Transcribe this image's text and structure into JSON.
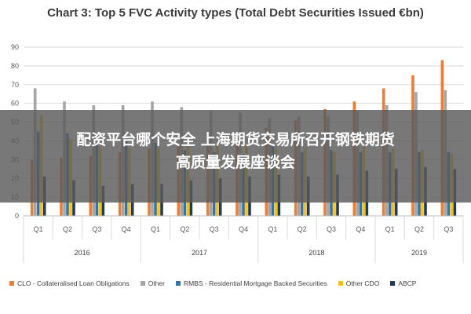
{
  "chart_data": {
    "type": "bar",
    "title": "Chart 3: Top 5 FVC Activity types (Total Debt Securities Issued €bn)",
    "xlabel": "",
    "ylabel": "",
    "ylim": [
      0,
      90
    ],
    "yticks": [
      0,
      10,
      20,
      30,
      40,
      50,
      60,
      70,
      80,
      90
    ],
    "grid": true,
    "legend_position": "bottom",
    "categories": [
      "Q1",
      "Q2",
      "Q3",
      "Q4",
      "Q1",
      "Q2",
      "Q3",
      "Q4",
      "Q1",
      "Q2",
      "Q3",
      "Q4",
      "Q1",
      "Q2",
      "Q3"
    ],
    "groups": [
      {
        "label": "2016",
        "count": 4
      },
      {
        "label": "2017",
        "count": 4
      },
      {
        "label": "2018",
        "count": 4
      },
      {
        "label": "2019",
        "count": 3
      }
    ],
    "series": [
      {
        "name": "CLO - Collateralised Loan Obligations",
        "color": "#ed7d31",
        "values": [
          30,
          31,
          32,
          34,
          36,
          38,
          40,
          44,
          47,
          51,
          57,
          61,
          68,
          75,
          83
        ]
      },
      {
        "name": "Other",
        "color": "#a5a5a5",
        "values": [
          68,
          61,
          59,
          59,
          61,
          58,
          56,
          55,
          52,
          53,
          53,
          56,
          59,
          66,
          67
        ]
      },
      {
        "name": "RMBS - Residential Mortgage Backed Securities",
        "color": "#2e75b6",
        "values": [
          45,
          44,
          38,
          41,
          39,
          35,
          34,
          33,
          38,
          34,
          35,
          34,
          34,
          34,
          34
        ]
      },
      {
        "name": "Other CDO",
        "color": "#ffc000",
        "values": [
          54,
          41,
          37,
          36,
          36,
          37,
          38,
          38,
          36,
          36,
          34,
          37,
          36,
          35,
          33
        ]
      },
      {
        "name": "ABCP",
        "color": "#1f3864",
        "values": [
          21,
          19,
          16,
          17,
          17,
          19,
          20,
          21,
          22,
          21,
          22,
          24,
          25,
          26,
          25
        ]
      }
    ]
  },
  "overlay": {
    "line1": "配资平台哪个安全 上海期货交易所召开钢铁期货",
    "line2": "高质量发展座谈会"
  }
}
